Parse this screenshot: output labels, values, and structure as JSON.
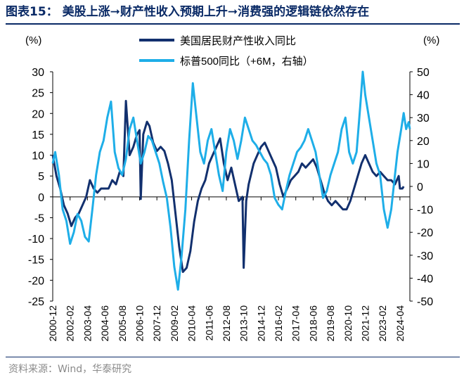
{
  "title": "图表15：  美股上涨➞财产性收入预期上升➞消费强的逻辑链依然存在",
  "source": "资料来源：Wind，华泰研究",
  "colors": {
    "dark": "#12306e",
    "light": "#1eaee8",
    "axis": "#000000"
  },
  "chart_data": {
    "type": "line",
    "left_axis": {
      "label": "(%)",
      "ylim": [
        -25,
        30
      ],
      "ticks": [
        -25,
        -20,
        -15,
        -10,
        -5,
        0,
        5,
        10,
        15,
        20,
        25,
        30
      ]
    },
    "right_axis": {
      "label": "(%)",
      "ylim": [
        -50,
        50
      ],
      "ticks": [
        -50,
        -40,
        -30,
        -20,
        -10,
        0,
        10,
        20,
        30,
        40,
        50
      ]
    },
    "x_range": [
      "2000-12",
      "2024-12"
    ],
    "x_ticks": [
      "2000-12",
      "2002-02",
      "2003-04",
      "2004-06",
      "2005-08",
      "2006-10",
      "2007-12",
      "2009-02",
      "2010-04",
      "2011-06",
      "2012-08",
      "2013-10",
      "2014-12",
      "2016-02",
      "2017-04",
      "2018-06",
      "2019-08",
      "2020-10",
      "2021-12",
      "2023-02",
      "2024-04"
    ],
    "legend_position": "top",
    "series": [
      {
        "name": "美国居民财产性收入同比",
        "axis": "left",
        "color": "#12306e",
        "points": [
          [
            "2000-12",
            10
          ],
          [
            "2001-03",
            5
          ],
          [
            "2001-06",
            2
          ],
          [
            "2001-09",
            -2
          ],
          [
            "2001-12",
            -4
          ],
          [
            "2002-03",
            -7
          ],
          [
            "2002-06",
            -5
          ],
          [
            "2002-09",
            -4
          ],
          [
            "2002-12",
            -2
          ],
          [
            "2003-03",
            0
          ],
          [
            "2003-06",
            4
          ],
          [
            "2003-09",
            2
          ],
          [
            "2003-12",
            1
          ],
          [
            "2004-03",
            2
          ],
          [
            "2004-06",
            2
          ],
          [
            "2004-09",
            2
          ],
          [
            "2004-12",
            4
          ],
          [
            "2005-03",
            3
          ],
          [
            "2005-06",
            6
          ],
          [
            "2005-09",
            5
          ],
          [
            "2005-11",
            23
          ],
          [
            "2006-02",
            10
          ],
          [
            "2006-05",
            12
          ],
          [
            "2006-08",
            15
          ],
          [
            "2006-10",
            16
          ],
          [
            "2006-11",
            -0.5
          ],
          [
            "2007-01",
            15
          ],
          [
            "2007-04",
            18
          ],
          [
            "2007-06",
            17
          ],
          [
            "2007-09",
            13
          ],
          [
            "2007-12",
            11
          ],
          [
            "2008-03",
            12
          ],
          [
            "2008-06",
            11
          ],
          [
            "2008-09",
            8
          ],
          [
            "2008-12",
            4
          ],
          [
            "2009-03",
            -4
          ],
          [
            "2009-06",
            -12
          ],
          [
            "2009-09",
            -18
          ],
          [
            "2009-12",
            -17
          ],
          [
            "2010-03",
            -13
          ],
          [
            "2010-06",
            -6
          ],
          [
            "2010-09",
            -1
          ],
          [
            "2010-12",
            2
          ],
          [
            "2011-03",
            4
          ],
          [
            "2011-06",
            8
          ],
          [
            "2011-09",
            10
          ],
          [
            "2011-12",
            12
          ],
          [
            "2012-03",
            14
          ],
          [
            "2012-06",
            8
          ],
          [
            "2012-09",
            4
          ],
          [
            "2012-12",
            7
          ],
          [
            "2013-03",
            3
          ],
          [
            "2013-06",
            -1
          ],
          [
            "2013-09",
            0
          ],
          [
            "2013-10",
            -17
          ],
          [
            "2013-12",
            -1
          ],
          [
            "2014-02",
            3
          ],
          [
            "2014-06",
            8
          ],
          [
            "2014-09",
            10
          ],
          [
            "2014-12",
            12
          ],
          [
            "2015-03",
            13
          ],
          [
            "2015-06",
            11
          ],
          [
            "2015-09",
            9
          ],
          [
            "2015-12",
            7
          ],
          [
            "2016-03",
            3
          ],
          [
            "2016-06",
            0
          ],
          [
            "2016-09",
            2
          ],
          [
            "2016-12",
            4
          ],
          [
            "2017-03",
            5
          ],
          [
            "2017-06",
            6
          ],
          [
            "2017-09",
            8
          ],
          [
            "2017-12",
            7
          ],
          [
            "2018-03",
            8
          ],
          [
            "2018-06",
            9
          ],
          [
            "2018-09",
            7
          ],
          [
            "2018-12",
            4
          ],
          [
            "2019-03",
            1
          ],
          [
            "2019-06",
            -1
          ],
          [
            "2019-09",
            -2
          ],
          [
            "2019-12",
            -1
          ],
          [
            "2020-03",
            -2
          ],
          [
            "2020-06",
            -3
          ],
          [
            "2020-09",
            -3
          ],
          [
            "2020-12",
            -1
          ],
          [
            "2021-03",
            2
          ],
          [
            "2021-06",
            5
          ],
          [
            "2021-09",
            8
          ],
          [
            "2021-12",
            10
          ],
          [
            "2022-03",
            8
          ],
          [
            "2022-06",
            6
          ],
          [
            "2022-09",
            5
          ],
          [
            "2022-12",
            6
          ],
          [
            "2023-03",
            5
          ],
          [
            "2023-06",
            4
          ],
          [
            "2023-09",
            4
          ],
          [
            "2023-12",
            3
          ],
          [
            "2024-03",
            5
          ],
          [
            "2024-04",
            2
          ],
          [
            "2024-06",
            2
          ],
          [
            "2024-07",
            2.5
          ]
        ]
      },
      {
        "name": "标普500同比（+6M，右轴）",
        "axis": "right",
        "color": "#1eaee8",
        "points": [
          [
            "2000-12",
            10
          ],
          [
            "2001-02",
            15
          ],
          [
            "2001-05",
            5
          ],
          [
            "2001-08",
            -10
          ],
          [
            "2001-11",
            -15
          ],
          [
            "2002-02",
            -25
          ],
          [
            "2002-05",
            -20
          ],
          [
            "2002-08",
            -12
          ],
          [
            "2002-11",
            -15
          ],
          [
            "2003-02",
            -22
          ],
          [
            "2003-05",
            -24
          ],
          [
            "2003-08",
            -10
          ],
          [
            "2003-11",
            5
          ],
          [
            "2004-02",
            15
          ],
          [
            "2004-05",
            20
          ],
          [
            "2004-08",
            30
          ],
          [
            "2004-11",
            37
          ],
          [
            "2005-02",
            15
          ],
          [
            "2005-05",
            8
          ],
          [
            "2005-08",
            5
          ],
          [
            "2005-11",
            12
          ],
          [
            "2006-02",
            25
          ],
          [
            "2006-05",
            30
          ],
          [
            "2006-08",
            20
          ],
          [
            "2006-11",
            10
          ],
          [
            "2007-02",
            15
          ],
          [
            "2007-05",
            22
          ],
          [
            "2007-08",
            20
          ],
          [
            "2007-11",
            15
          ],
          [
            "2008-02",
            10
          ],
          [
            "2008-05",
            2
          ],
          [
            "2008-08",
            -5
          ],
          [
            "2008-11",
            -18
          ],
          [
            "2009-02",
            -35
          ],
          [
            "2009-05",
            -45
          ],
          [
            "2009-08",
            -30
          ],
          [
            "2009-11",
            -10
          ],
          [
            "2010-02",
            20
          ],
          [
            "2010-05",
            45
          ],
          [
            "2010-08",
            30
          ],
          [
            "2010-11",
            15
          ],
          [
            "2011-02",
            10
          ],
          [
            "2011-05",
            20
          ],
          [
            "2011-08",
            25
          ],
          [
            "2011-11",
            15
          ],
          [
            "2012-02",
            5
          ],
          [
            "2012-05",
            -2
          ],
          [
            "2012-08",
            15
          ],
          [
            "2012-11",
            25
          ],
          [
            "2013-02",
            20
          ],
          [
            "2013-05",
            12
          ],
          [
            "2013-08",
            20
          ],
          [
            "2013-11",
            30
          ],
          [
            "2014-02",
            25
          ],
          [
            "2014-05",
            20
          ],
          [
            "2014-08",
            18
          ],
          [
            "2014-11",
            15
          ],
          [
            "2015-02",
            12
          ],
          [
            "2015-05",
            10
          ],
          [
            "2015-08",
            5
          ],
          [
            "2015-11",
            -5
          ],
          [
            "2016-02",
            -8
          ],
          [
            "2016-05",
            -10
          ],
          [
            "2016-08",
            -2
          ],
          [
            "2016-11",
            5
          ],
          [
            "2017-02",
            10
          ],
          [
            "2017-05",
            15
          ],
          [
            "2017-08",
            17
          ],
          [
            "2017-11",
            20
          ],
          [
            "2018-02",
            25
          ],
          [
            "2018-05",
            20
          ],
          [
            "2018-08",
            15
          ],
          [
            "2018-11",
            5
          ],
          [
            "2019-02",
            -5
          ],
          [
            "2019-05",
            -2
          ],
          [
            "2019-08",
            5
          ],
          [
            "2019-11",
            10
          ],
          [
            "2020-02",
            15
          ],
          [
            "2020-05",
            25
          ],
          [
            "2020-08",
            30
          ],
          [
            "2020-11",
            15
          ],
          [
            "2021-02",
            10
          ],
          [
            "2021-05",
            15
          ],
          [
            "2021-08",
            35
          ],
          [
            "2021-10",
            50
          ],
          [
            "2021-12",
            40
          ],
          [
            "2022-03",
            30
          ],
          [
            "2022-06",
            20
          ],
          [
            "2022-09",
            10
          ],
          [
            "2022-12",
            5
          ],
          [
            "2023-03",
            -10
          ],
          [
            "2023-06",
            -18
          ],
          [
            "2023-09",
            -10
          ],
          [
            "2023-12",
            5
          ],
          [
            "2024-02",
            15
          ],
          [
            "2024-05",
            25
          ],
          [
            "2024-07",
            32
          ],
          [
            "2024-09",
            25
          ],
          [
            "2024-11",
            28
          ],
          [
            "2024-12",
            25
          ]
        ]
      }
    ]
  }
}
